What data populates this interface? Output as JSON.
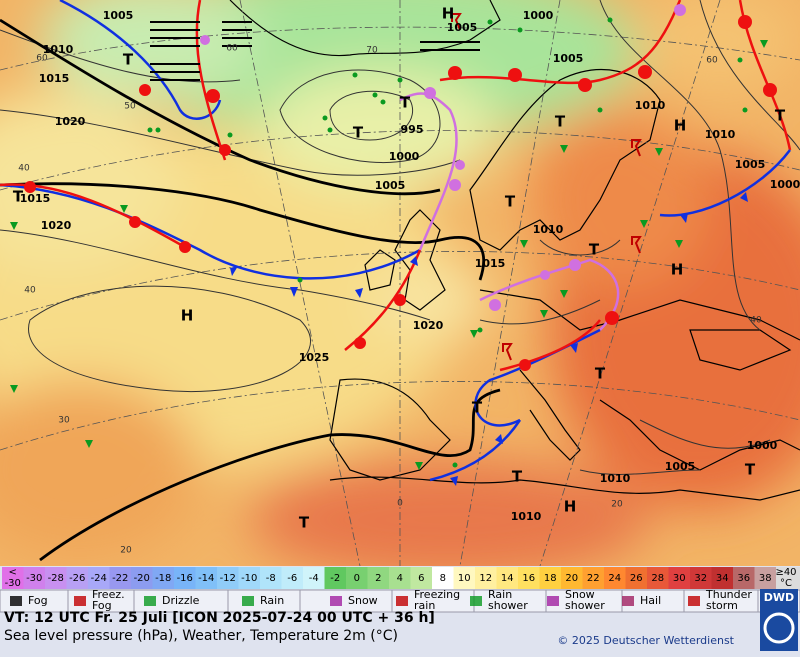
{
  "map": {
    "pressure_labels": [
      1005,
      1010,
      1015,
      1020,
      1005,
      1000,
      1005,
      995,
      1000,
      1005,
      1010,
      1010,
      1005,
      1000,
      1015,
      1020,
      1010,
      1015,
      1020,
      1025,
      1000,
      1005,
      1010,
      1010
    ],
    "centers": [
      "H",
      "H",
      "H",
      "H",
      "H",
      "T",
      "T",
      "T",
      "T",
      "T",
      "T",
      "T",
      "T",
      "T",
      "T",
      "T",
      "T",
      "T"
    ],
    "temperature_labels": [
      60,
      50,
      40,
      60,
      70,
      60,
      40,
      30,
      0,
      20,
      20,
      40
    ]
  },
  "color_scale": {
    "labels": [
      "<",
      "-30",
      "-30",
      "-28",
      "-26",
      "-24",
      "-22",
      "-20",
      "-18",
      "-16",
      "-14",
      "-12",
      "-10",
      "-8",
      "-6",
      "-4",
      "-2",
      "0",
      "2",
      "4",
      "6",
      "8",
      "10",
      "12",
      "14",
      "16",
      "18",
      "20",
      "22",
      "24",
      "26",
      "28",
      "30",
      "32",
      "34",
      "36",
      "38",
      "≥40",
      "°C"
    ]
  },
  "legend": [
    "Fog",
    "Freez.",
    "Fog",
    "Drizzle",
    "Rain",
    "Snow",
    "Freezing",
    "rain",
    "Rain",
    "shower",
    "Snow",
    "shower",
    "Hail",
    "Thunder",
    "storm"
  ],
  "footer": {
    "valid_time": "VT: 12 UTC Fr.  25 Juli [ICON 2025-07-24  00 UTC + 36 h]",
    "description": "Sea level pressure (hPa), Weather, Temperature 2m (°C)",
    "copyright": "© 2025 Deutscher Wetterdienst",
    "logo": "DWD"
  }
}
